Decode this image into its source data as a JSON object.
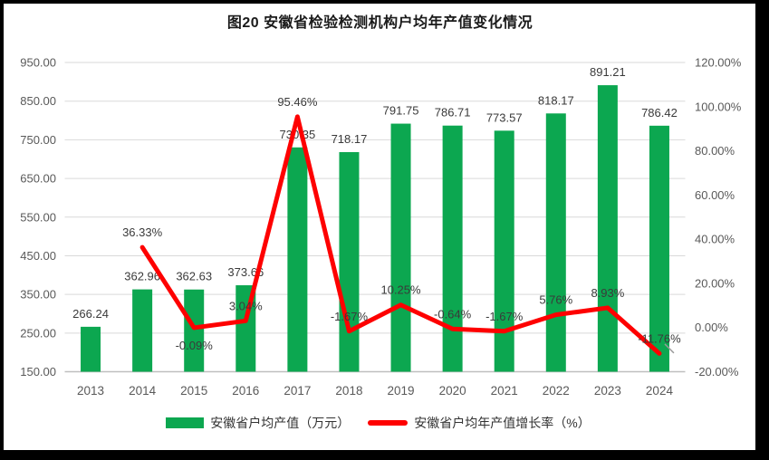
{
  "title": "图20 安徽省检验检测机构户均年产值变化情况",
  "colors": {
    "bar": "#0CA750",
    "line": "#FE0000",
    "grid": "#D9D9D9",
    "axis_line": "#BFBFBF",
    "axis_text": "#595959",
    "label_text": "#3A3A3A",
    "leader": "#999999",
    "frame": "#000000"
  },
  "chart_data": {
    "type": "bar",
    "subtype": "bar+line combo, dual axis",
    "title": "图20 安徽省检验检测机构户均年产值变化情况",
    "categories": [
      "2013",
      "2014",
      "2015",
      "2016",
      "2017",
      "2018",
      "2019",
      "2020",
      "2021",
      "2022",
      "2023",
      "2024"
    ],
    "series": [
      {
        "name": "安徽省户均产值（万元）",
        "type": "bar",
        "axis": "left",
        "values": [
          266.24,
          362.96,
          362.63,
          373.66,
          730.35,
          718.17,
          791.75,
          786.71,
          773.57,
          818.17,
          891.21,
          786.42
        ],
        "labels": [
          "266.24",
          "362.96",
          "362.63",
          "373.66",
          "730.35",
          "718.17",
          "791.75",
          "786.71",
          "773.57",
          "818.17",
          "891.21",
          "786.42"
        ]
      },
      {
        "name": "安徽省户均年产值增长率（%）",
        "type": "line",
        "axis": "right",
        "values": [
          null,
          36.33,
          -0.09,
          3.04,
          95.46,
          -1.67,
          10.25,
          -0.64,
          -1.67,
          5.76,
          8.93,
          -11.76
        ],
        "labels": [
          "",
          "36.33%",
          "-0.09%",
          "3.04%",
          "95.46%",
          "-1.67%",
          "10.25%",
          "-0.64%",
          "-1.67%",
          "5.76%",
          "8.93%",
          "-11.76%"
        ],
        "label_side": [
          "",
          "above",
          "below",
          "above",
          "above",
          "above",
          "above",
          "above",
          "above",
          "above",
          "above",
          "above"
        ]
      }
    ],
    "left_axis": {
      "min": 150,
      "max": 950,
      "step": 100,
      "ticks": [
        "950.00",
        "850.00",
        "750.00",
        "650.00",
        "550.00",
        "450.00",
        "350.00",
        "250.00",
        "150.00"
      ]
    },
    "right_axis": {
      "min": -20,
      "max": 120,
      "step": 20,
      "ticks": [
        "120.00%",
        "100.00%",
        "80.00%",
        "60.00%",
        "40.00%",
        "20.00%",
        "0.00%",
        "-20.00%"
      ]
    },
    "grid": true,
    "legend_position": "bottom"
  }
}
